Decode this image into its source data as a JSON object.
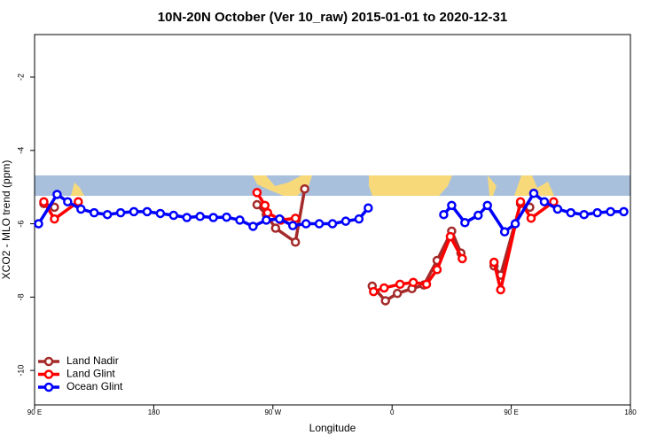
{
  "chart_data": {
    "type": "line",
    "title": "10N-20N October (Ver 10_raw)   2015-01-01 to 2020-12-31",
    "x_label": "Longitude",
    "y_label": "XCO2 - MLO trend (ppm)",
    "xlim": [
      90,
      540
    ],
    "ylim": [
      -10.94,
      -0.84
    ],
    "xticks": [
      {
        "value": 90,
        "label": "90 E"
      },
      {
        "value": 180,
        "label": "180"
      },
      {
        "value": 270,
        "label": "90 W"
      },
      {
        "value": 360,
        "label": "0"
      },
      {
        "value": 450,
        "label": "90 E"
      },
      {
        "value": 540,
        "label": "180"
      }
    ],
    "yticks": [
      -10,
      -8,
      -6,
      -4,
      -2
    ],
    "legend": "bottom-left",
    "series": [
      {
        "name": "Land Nadir",
        "color": "#a52a2a",
        "x": [
          97,
          105,
          null,
          258,
          265,
          272,
          287,
          294,
          null,
          345,
          355,
          364,
          375,
          384,
          394,
          405,
          412,
          null,
          437,
          442,
          457,
          464
        ],
        "values": [
          -5.45,
          -5.55,
          null,
          -5.48,
          -5.75,
          -6.12,
          -6.5,
          -5.05,
          null,
          -7.7,
          -8.1,
          -7.9,
          -7.77,
          -7.67,
          -7.0,
          -6.2,
          -6.8,
          null,
          -7.15,
          -7.4,
          -5.45,
          -5.55
        ]
      },
      {
        "name": "Land Glint",
        "color": "#ff0000",
        "x": [
          97,
          105,
          123,
          null,
          258,
          264,
          266,
          276,
          287,
          null,
          346,
          354,
          366,
          376,
          386,
          394,
          404,
          413,
          null,
          437,
          442,
          457,
          465,
          482
        ],
        "values": [
          -5.4,
          -5.87,
          -5.4,
          null,
          -5.15,
          -5.5,
          -5.7,
          -5.9,
          -5.85,
          null,
          -7.85,
          -7.75,
          -7.65,
          -7.6,
          -7.65,
          -7.25,
          -6.35,
          -6.95,
          null,
          -7.05,
          -7.8,
          -5.4,
          -5.85,
          -5.4
        ]
      },
      {
        "name": "Ocean Glint",
        "color": "#0000ff",
        "x": [
          93,
          107,
          115,
          125,
          135,
          145,
          155,
          165,
          175,
          185,
          195,
          205,
          215,
          225,
          235,
          245,
          255,
          265,
          275,
          285,
          295,
          305,
          315,
          325,
          335,
          342,
          null,
          399,
          405,
          415,
          425,
          432,
          445,
          453,
          467,
          475,
          485,
          495,
          505,
          515,
          525,
          535
        ],
        "values": [
          -6.0,
          -5.2,
          -5.4,
          -5.6,
          -5.7,
          -5.75,
          -5.7,
          -5.67,
          -5.67,
          -5.72,
          -5.77,
          -5.83,
          -5.8,
          -5.83,
          -5.82,
          -5.9,
          -6.07,
          -5.9,
          -5.87,
          -6.05,
          -6.0,
          -6.0,
          -6.0,
          -5.93,
          -5.87,
          -5.57,
          null,
          -5.75,
          -5.5,
          -5.97,
          -5.77,
          -5.5,
          -6.22,
          -6.0,
          -5.17,
          -5.4,
          -5.6,
          -5.7,
          -5.75,
          -5.7,
          -5.67,
          -5.67
        ]
      }
    ]
  }
}
